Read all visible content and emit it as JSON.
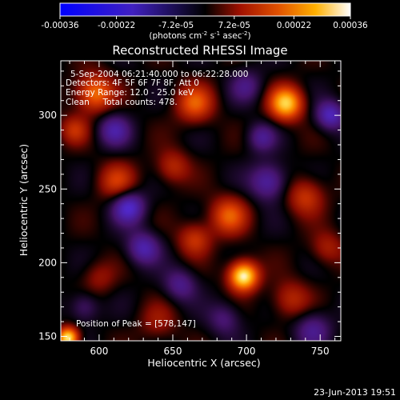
{
  "chart_data": {
    "type": "heatmap",
    "title": "Reconstructed RHESSI Image",
    "xlabel": "Heliocentric X (arcsec)",
    "ylabel": "Heliocentric Y (arcsec)",
    "xlim": [
      574,
      764
    ],
    "ylim": [
      147,
      337
    ],
    "xticks": [
      600,
      650,
      700,
      750
    ],
    "yticks": [
      150,
      200,
      250,
      300
    ],
    "colorbar": {
      "ticks": [
        "-0.00036",
        "-0.00022",
        "-7.2e-05",
        "7.2e-05",
        "0.00022",
        "0.00036"
      ],
      "range": [
        -0.00036,
        0.00036
      ],
      "label_parts": [
        "(photons cm",
        "-2",
        " s",
        "-1",
        " asec",
        "-2",
        ")"
      ]
    },
    "annotations": [
      "5-Sep-2004 06:21:40.000 to 06:22:28.000",
      "Detectors: 4F 5F 6F 7F 8F, Att 0",
      "Energy Range: 12.0 - 25.0 keV",
      "Clean     Total counts: 478."
    ],
    "peak_label": "Position of Peak = [578,147]",
    "peak": {
      "x": 578,
      "y": 147
    },
    "sources": [
      {
        "x": 698,
        "y": 191,
        "s": 7,
        "v": 0.00036
      },
      {
        "x": 579,
        "y": 149,
        "s": 5,
        "v": 0.00034
      },
      {
        "x": 727,
        "y": 308,
        "s": 8,
        "v": 0.0003
      },
      {
        "x": 688,
        "y": 232,
        "s": 9,
        "v": 0.00018
      },
      {
        "x": 665,
        "y": 308,
        "s": 9,
        "v": 0.00018
      },
      {
        "x": 740,
        "y": 245,
        "s": 9,
        "v": 0.00014
      },
      {
        "x": 597,
        "y": 315,
        "s": 9,
        "v": 0.00022
      },
      {
        "x": 612,
        "y": 255,
        "s": 9,
        "v": 0.00014
      },
      {
        "x": 665,
        "y": 216,
        "s": 8,
        "v": 0.00014
      },
      {
        "x": 730,
        "y": 175,
        "s": 9,
        "v": 0.00012
      },
      {
        "x": 650,
        "y": 265,
        "s": 8,
        "v": 0.00012
      },
      {
        "x": 640,
        "y": 160,
        "s": 9,
        "v": 8e-05
      },
      {
        "x": 755,
        "y": 210,
        "s": 8,
        "v": 0.0001
      },
      {
        "x": 600,
        "y": 190,
        "s": 8,
        "v": 8e-05
      },
      {
        "x": 583,
        "y": 290,
        "s": 7,
        "v": 0.00012
      },
      {
        "x": 620,
        "y": 238,
        "s": 8,
        "v": -0.0002
      },
      {
        "x": 630,
        "y": 210,
        "s": 8,
        "v": -0.00016
      },
      {
        "x": 610,
        "y": 290,
        "s": 8,
        "v": -0.00014
      },
      {
        "x": 715,
        "y": 255,
        "s": 9,
        "v": -0.00016
      },
      {
        "x": 757,
        "y": 300,
        "s": 7,
        "v": -0.00018
      },
      {
        "x": 710,
        "y": 285,
        "s": 7,
        "v": -0.00012
      },
      {
        "x": 655,
        "y": 185,
        "s": 8,
        "v": -0.00012
      },
      {
        "x": 745,
        "y": 155,
        "s": 9,
        "v": -0.00012
      },
      {
        "x": 685,
        "y": 162,
        "s": 8,
        "v": -0.0001
      },
      {
        "x": 700,
        "y": 320,
        "s": 8,
        "v": -0.0001
      },
      {
        "x": 590,
        "y": 170,
        "s": 7,
        "v": -0.0001
      }
    ]
  },
  "footer": {
    "timestamp": "23-Jun-2013 19:51"
  }
}
